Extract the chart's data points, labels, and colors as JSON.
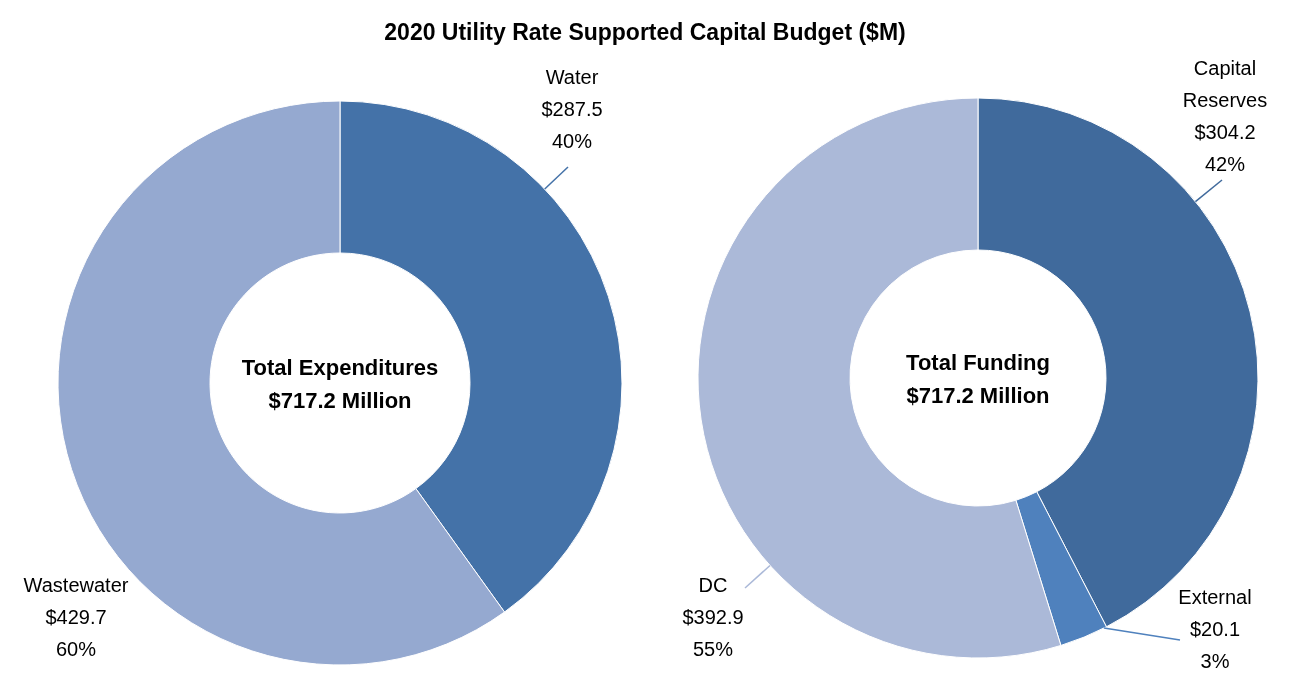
{
  "chart_data": [
    {
      "type": "donut",
      "title": "2020 Utility Rate Supported Capital Budget ($M)",
      "categories": [
        "Water",
        "Wastewater"
      ],
      "values": [
        287.5,
        429.7
      ],
      "colors": [
        "#4472a8",
        "#95a9d0"
      ],
      "value_labels": [
        "$287.5\n40%",
        "$429.7\n60%"
      ],
      "annotations": [
        "Total Expenditures",
        "$717.2 Million"
      ]
    },
    {
      "type": "donut",
      "categories": [
        "Capital Reserves",
        "External",
        "DC"
      ],
      "values": [
        304.2,
        20.1,
        392.9
      ],
      "colors": [
        "#406a9c",
        "#4f81bd",
        "#abb9d8"
      ],
      "value_labels": [
        "$304.2\n42%",
        "$20.1\n3%",
        "$392.9\n55%"
      ],
      "annotations": [
        "Total Funding",
        "$717.2 Million"
      ]
    }
  ]
}
